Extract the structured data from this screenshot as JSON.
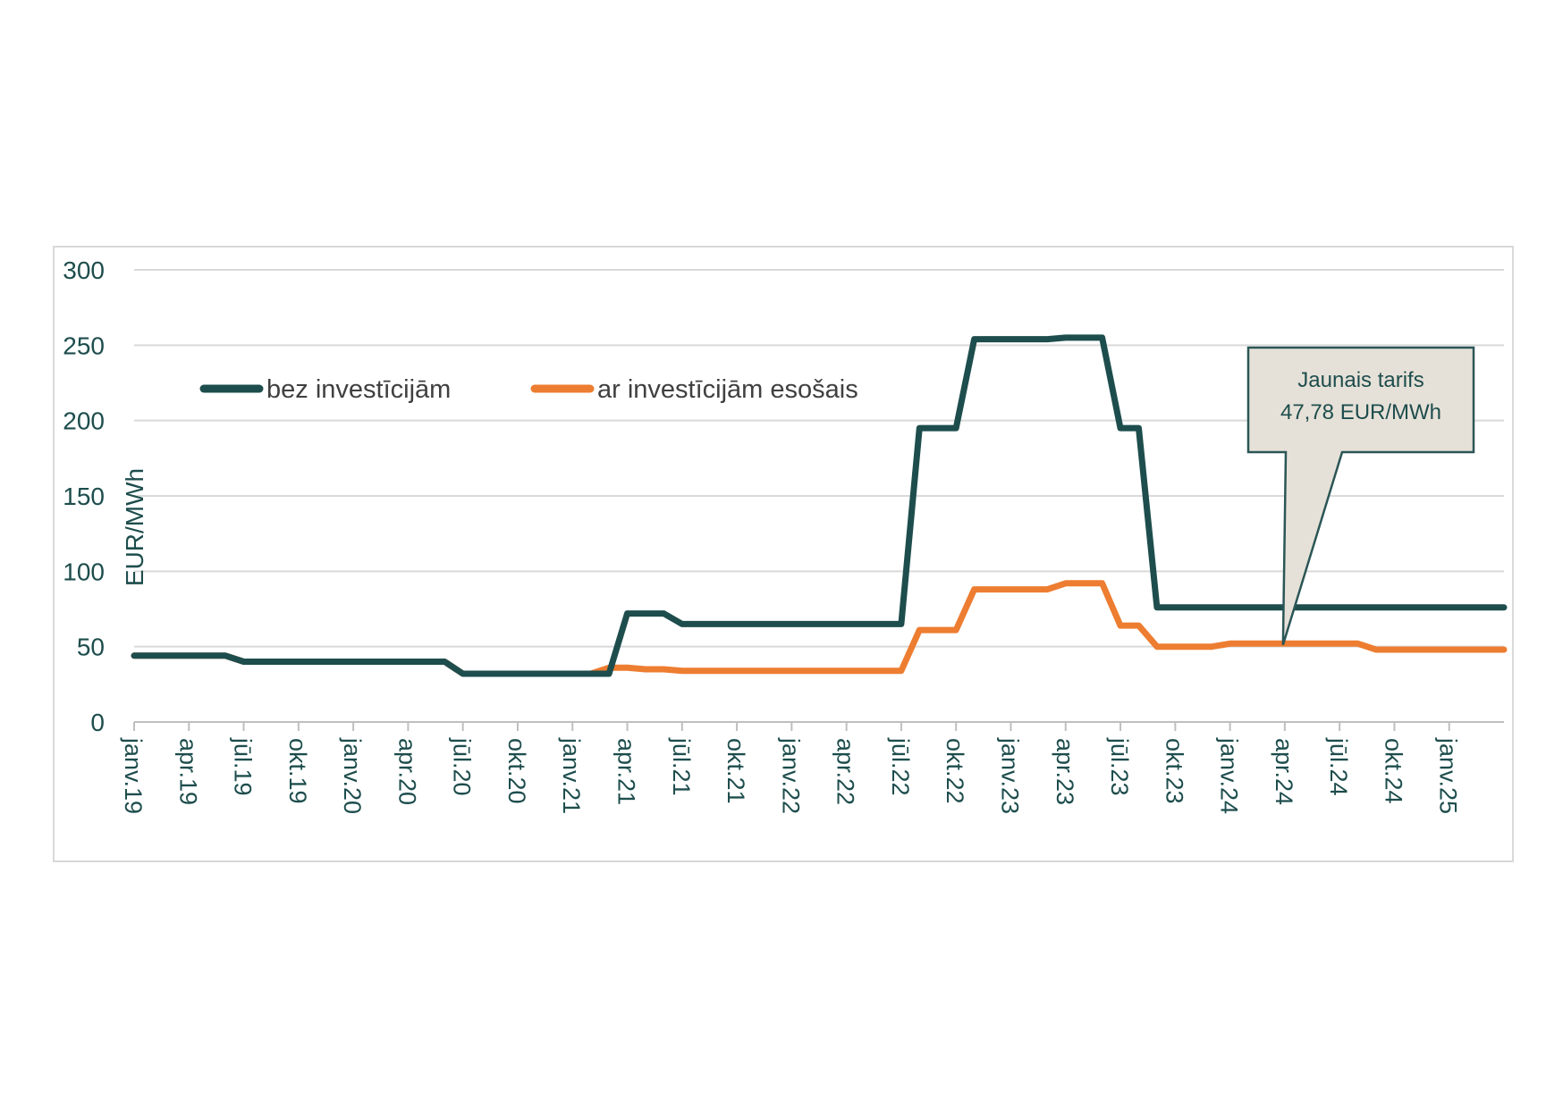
{
  "chart_data": {
    "type": "line",
    "ylabel": "EUR/MWh",
    "ylim": [
      0,
      300
    ],
    "yticks": [
      0,
      50,
      100,
      150,
      200,
      250,
      300
    ],
    "grid": true,
    "legend_position": "top-left",
    "x_tick_labels": [
      "janv.19",
      "apr.19",
      "jūl.19",
      "okt.19",
      "janv.20",
      "apr.20",
      "jūl.20",
      "okt.20",
      "janv.21",
      "apr.21",
      "jūl.21",
      "okt.21",
      "janv.22",
      "apr.22",
      "jūl.22",
      "okt.22",
      "janv.23",
      "apr.23",
      "jūl.23",
      "okt.23",
      "janv.24",
      "apr.24",
      "jūl.24",
      "okt.24",
      "janv.25"
    ],
    "x_months": [
      "2019-01",
      "2019-02",
      "2019-03",
      "2019-04",
      "2019-05",
      "2019-06",
      "2019-07",
      "2019-08",
      "2019-09",
      "2019-10",
      "2019-11",
      "2019-12",
      "2020-01",
      "2020-02",
      "2020-03",
      "2020-04",
      "2020-05",
      "2020-06",
      "2020-07",
      "2020-08",
      "2020-09",
      "2020-10",
      "2020-11",
      "2020-12",
      "2021-01",
      "2021-02",
      "2021-03",
      "2021-04",
      "2021-05",
      "2021-06",
      "2021-07",
      "2021-08",
      "2021-09",
      "2021-10",
      "2021-11",
      "2021-12",
      "2022-01",
      "2022-02",
      "2022-03",
      "2022-04",
      "2022-05",
      "2022-06",
      "2022-07",
      "2022-08",
      "2022-09",
      "2022-10",
      "2022-11",
      "2022-12",
      "2023-01",
      "2023-02",
      "2023-03",
      "2023-04",
      "2023-05",
      "2023-06",
      "2023-07",
      "2023-08",
      "2023-09",
      "2023-10",
      "2023-11",
      "2023-12",
      "2024-01",
      "2024-02",
      "2024-03",
      "2024-04",
      "2024-05",
      "2024-06",
      "2024-07",
      "2024-08",
      "2024-09",
      "2024-10",
      "2024-11",
      "2024-12",
      "2025-01",
      "2025-02",
      "2025-03",
      "2025-04"
    ],
    "series": [
      {
        "name": "bez investīcijām",
        "color": "#1e4d4d",
        "values": [
          44,
          44,
          44,
          44,
          44,
          44,
          40,
          40,
          40,
          40,
          40,
          40,
          40,
          40,
          40,
          40,
          40,
          40,
          32,
          32,
          32,
          32,
          32,
          32,
          32,
          32,
          32,
          72,
          72,
          72,
          65,
          65,
          65,
          65,
          65,
          65,
          65,
          65,
          65,
          65,
          65,
          65,
          65,
          195,
          195,
          195,
          254,
          254,
          254,
          254,
          254,
          255,
          255,
          255,
          195,
          195,
          76,
          76,
          76,
          76,
          76,
          76,
          76,
          76,
          76,
          76,
          76,
          76,
          76,
          76,
          76,
          76,
          76,
          76,
          76,
          76
        ]
      },
      {
        "name": "ar investīcijām esošais",
        "color": "#ed7d31",
        "values": [
          44,
          44,
          44,
          44,
          44,
          44,
          40,
          40,
          40,
          40,
          40,
          40,
          40,
          40,
          40,
          40,
          40,
          40,
          32,
          32,
          32,
          32,
          32,
          32,
          32,
          32,
          36,
          36,
          35,
          35,
          34,
          34,
          34,
          34,
          34,
          34,
          34,
          34,
          34,
          34,
          34,
          34,
          34,
          61,
          61,
          61,
          88,
          88,
          88,
          88,
          88,
          92,
          92,
          92,
          64,
          64,
          50,
          50,
          50,
          50,
          52,
          52,
          52,
          52,
          52,
          52,
          52,
          52,
          48,
          48,
          48,
          48,
          48,
          48,
          48,
          48
        ]
      }
    ],
    "annotations": [
      {
        "lines": [
          "Jaunais tarifs",
          "47,78 EUR/MWh"
        ],
        "points_to_x": "2024-04",
        "points_to_y": 50
      }
    ]
  }
}
